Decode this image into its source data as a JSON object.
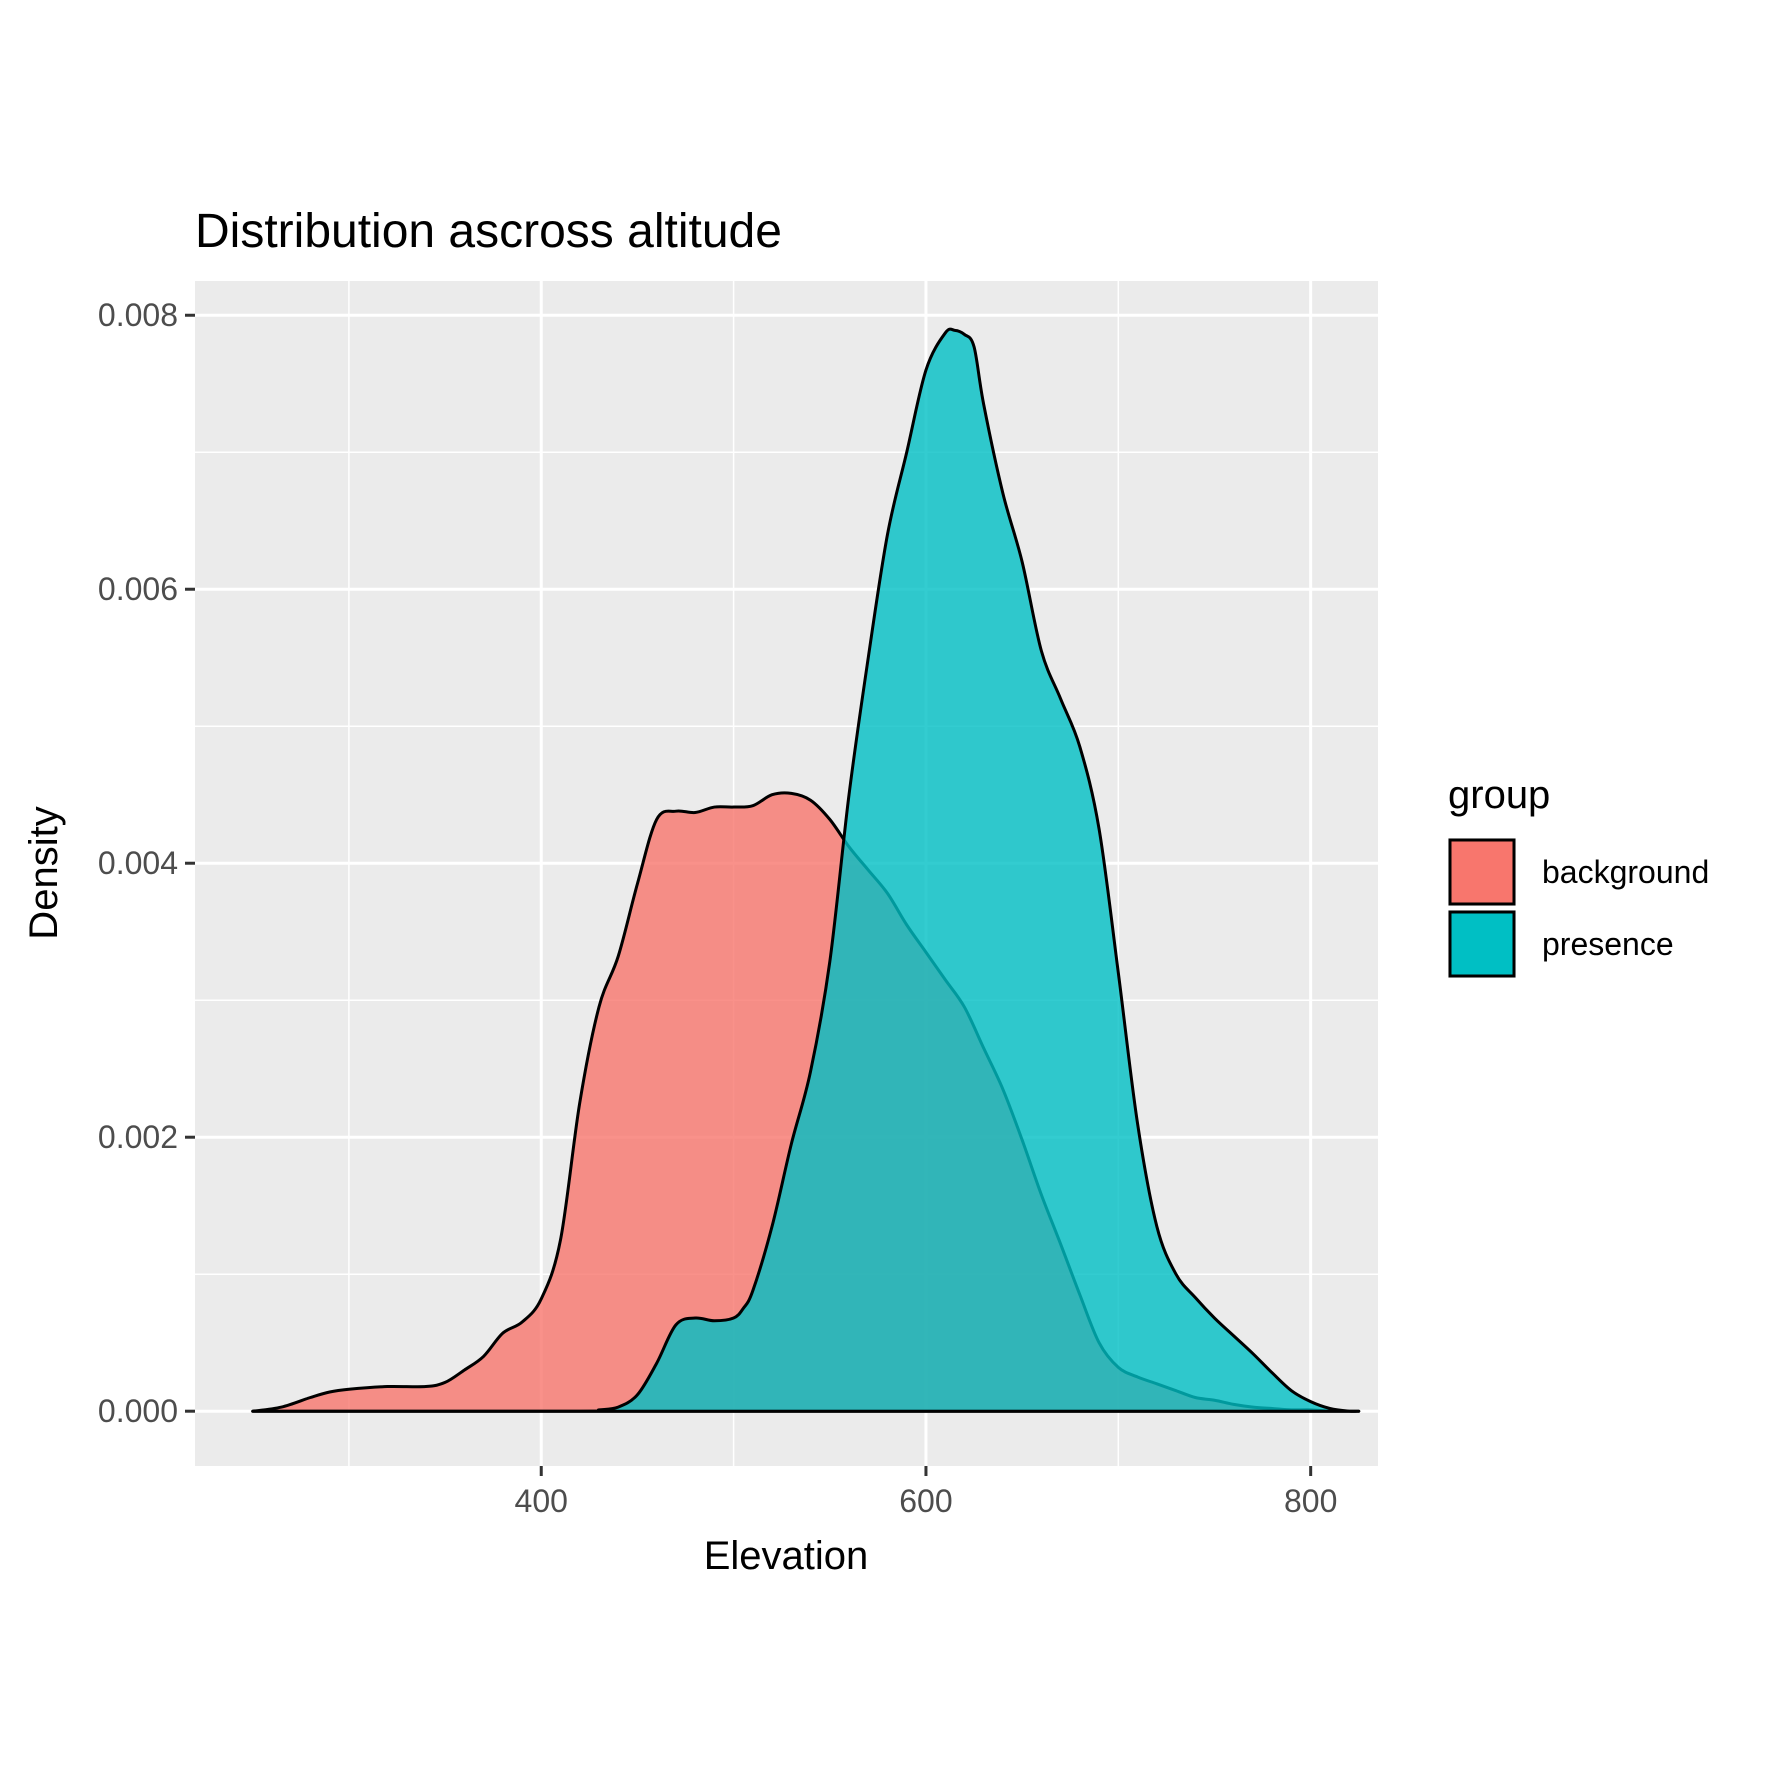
{
  "chart_data": {
    "type": "area",
    "title": "Distribution ascross altitude",
    "xlabel": "Elevation",
    "ylabel": "Density",
    "xlim": [
      220,
      835
    ],
    "ylim": [
      -0.0004,
      0.00825
    ],
    "x_ticks": [
      400,
      600,
      800
    ],
    "x_tick_labels": [
      "400",
      "600",
      "800"
    ],
    "x_minor_ticks": [
      300,
      500,
      700
    ],
    "y_ticks": [
      0.0,
      0.002,
      0.004,
      0.006,
      0.008
    ],
    "y_tick_labels": [
      "0.000",
      "0.002",
      "0.004",
      "0.006",
      "0.008"
    ],
    "y_minor_ticks": [
      0.001,
      0.003,
      0.005,
      0.007
    ],
    "grid": true,
    "panel_background": "#ebebeb",
    "legend": {
      "title": "group",
      "placement": "right"
    },
    "fill_alpha": 0.8,
    "series": [
      {
        "name": "background",
        "color": "#f8766d",
        "x": [
          250,
          265,
          280,
          290,
          300,
          320,
          340,
          350,
          360,
          370,
          380,
          390,
          400,
          410,
          420,
          430,
          440,
          450,
          460,
          470,
          480,
          490,
          500,
          510,
          520,
          530,
          540,
          550,
          560,
          570,
          580,
          590,
          600,
          610,
          620,
          630,
          640,
          650,
          660,
          670,
          680,
          690,
          700,
          710,
          720,
          730,
          740,
          750,
          760,
          770,
          780,
          790,
          800,
          810,
          820,
          825
        ],
        "y": [
          0.0,
          3e-05,
          0.0001,
          0.00014,
          0.00016,
          0.00018,
          0.00018,
          0.00021,
          0.0003,
          0.0004,
          0.00057,
          0.00065,
          0.00082,
          0.00125,
          0.00225,
          0.00295,
          0.00332,
          0.00385,
          0.00432,
          0.00438,
          0.00437,
          0.00441,
          0.00441,
          0.00442,
          0.0045,
          0.00451,
          0.00446,
          0.00432,
          0.00412,
          0.00395,
          0.00378,
          0.00355,
          0.00335,
          0.00315,
          0.00295,
          0.00265,
          0.00235,
          0.00198,
          0.00158,
          0.00122,
          0.00085,
          0.0005,
          0.00032,
          0.00025,
          0.0002,
          0.00015,
          0.0001,
          8e-05,
          5e-05,
          3e-05,
          2e-05,
          1e-05,
          1e-05,
          0.0,
          0.0,
          0.0
        ]
      },
      {
        "name": "presence",
        "color": "#00bfc4",
        "x": [
          250,
          420,
          430,
          440,
          450,
          460,
          470,
          480,
          490,
          500,
          505,
          510,
          520,
          530,
          540,
          550,
          560,
          570,
          580,
          590,
          600,
          610,
          615,
          620,
          625,
          630,
          640,
          650,
          660,
          670,
          680,
          690,
          700,
          710,
          720,
          730,
          740,
          750,
          760,
          770,
          780,
          790,
          800,
          810,
          820,
          825
        ],
        "y": [
          0.0,
          0.0,
          1e-05,
          3e-05,
          0.00012,
          0.00035,
          0.00063,
          0.00068,
          0.00066,
          0.00068,
          0.00075,
          0.00088,
          0.00135,
          0.00195,
          0.00248,
          0.00328,
          0.0045,
          0.0055,
          0.0064,
          0.007,
          0.0076,
          0.00787,
          0.00789,
          0.00786,
          0.00777,
          0.00735,
          0.0067,
          0.0062,
          0.00555,
          0.0052,
          0.00485,
          0.00425,
          0.0032,
          0.0021,
          0.00135,
          0.001,
          0.00083,
          0.00068,
          0.00055,
          0.00042,
          0.00028,
          0.00015,
          7e-05,
          2e-05,
          0.0,
          0.0
        ]
      }
    ]
  }
}
